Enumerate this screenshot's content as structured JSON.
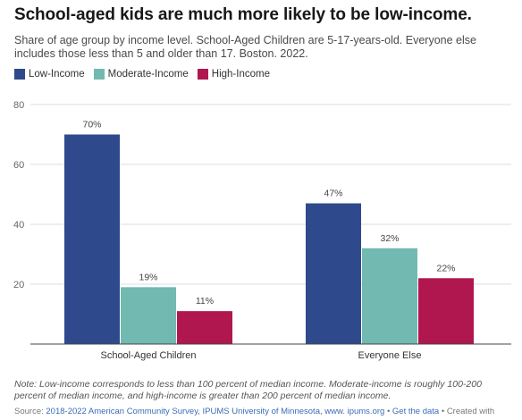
{
  "title": "School-aged kids are much more likely to be low-income.",
  "subtitle": "Share of age group by income level. School-Aged Children are 5-17-years-old. Everyone else includes those less than 5 and older than 17. Boston. 2022.",
  "note": "Note: Low-income corresponds to less than 100 percent of median income. Moderate-income is roughly 100-200 percent of median income, and high-income is greater than 200 percent of median income.",
  "source": {
    "prefix": "Source: ",
    "link1": "2018-2022 American Community Survey, IPUMS University of Minnesota, www. ipums.org",
    "sep": " • ",
    "link2": "Get the data",
    "suffix": " • Created with"
  },
  "colors": {
    "low": "#2e4a8c",
    "moderate": "#72b9b2",
    "high": "#b0174e"
  },
  "chart_data": {
    "type": "bar",
    "categories": [
      "School-Aged Children",
      "Everyone Else"
    ],
    "series": [
      {
        "name": "Low-Income",
        "values": [
          70,
          47
        ],
        "labels": [
          "70%",
          "47%"
        ],
        "color": "#2e4a8c"
      },
      {
        "name": "Moderate-Income",
        "values": [
          19,
          32
        ],
        "labels": [
          "19%",
          "32%"
        ],
        "color": "#72b9b2"
      },
      {
        "name": "High-Income",
        "values": [
          11,
          22
        ],
        "labels": [
          "11%",
          "22%"
        ],
        "color": "#b0174e"
      }
    ],
    "yticks": [
      20,
      40,
      60,
      80
    ],
    "ylim": [
      0,
      80
    ],
    "legend": "top-left",
    "grid": true
  }
}
